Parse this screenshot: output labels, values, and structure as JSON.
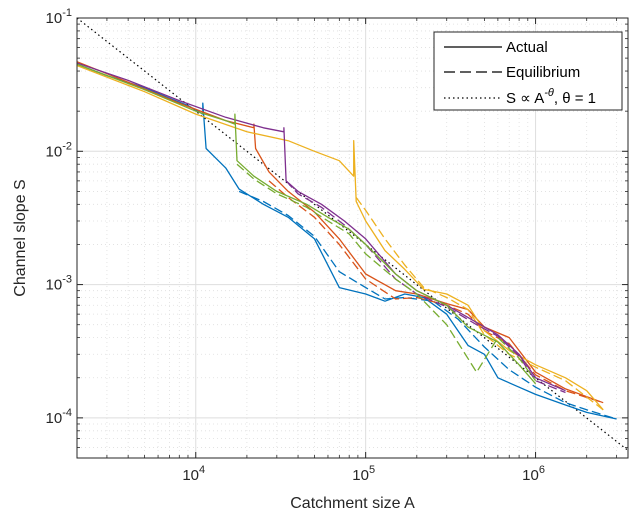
{
  "chart_data": {
    "type": "line",
    "title": "",
    "xlabel": "Catchment size A",
    "ylabel": "Channel slope S",
    "x_scale": "log",
    "y_scale": "log",
    "xlim": [
      2000,
      3500000
    ],
    "ylim": [
      5e-05,
      0.1
    ],
    "x_ticks": [
      {
        "value": 10000,
        "base": "10",
        "exp": "4"
      },
      {
        "value": 100000,
        "base": "10",
        "exp": "5"
      },
      {
        "value": 1000000,
        "base": "10",
        "exp": "6"
      }
    ],
    "y_ticks": [
      {
        "value": 0.1,
        "base": "10",
        "exp": "-1"
      },
      {
        "value": 0.01,
        "base": "10",
        "exp": "-2"
      },
      {
        "value": 0.001,
        "base": "10",
        "exp": "-3"
      },
      {
        "value": 0.0001,
        "base": "10",
        "exp": "-4"
      }
    ],
    "grid": true,
    "legend_position": "top-right",
    "legend": [
      {
        "label": "Actual",
        "style": "solid"
      },
      {
        "label": "Equilibrium",
        "style": "dashed"
      },
      {
        "label_parts": [
          "S ∝ A",
          "-θ",
          ", θ = 1"
        ],
        "style": "dotted"
      }
    ],
    "reference_line": {
      "relation": "S ∝ A^-θ",
      "theta": 1,
      "points": [
        [
          2000,
          0.1
        ],
        [
          3500000,
          5.7e-05
        ]
      ]
    },
    "colors": {
      "blue": "#0072BD",
      "orange": "#D95319",
      "yellow": "#EDB120",
      "purple": "#7E2F8E",
      "green": "#77AC30",
      "grid": "#dedede",
      "text": "#262626"
    },
    "series": [
      {
        "color_key": "blue",
        "kind": "actual",
        "points": [
          [
            2000,
            0.045
          ],
          [
            3000,
            0.037
          ],
          [
            5000,
            0.03
          ],
          [
            7000,
            0.025
          ],
          [
            9000,
            0.022
          ],
          [
            11000,
            0.019
          ],
          [
            11000,
            0.023
          ],
          [
            11500,
            0.0105
          ],
          [
            13000,
            0.009
          ],
          [
            15000,
            0.0075
          ],
          [
            18000,
            0.0052
          ],
          [
            25000,
            0.004
          ],
          [
            35000,
            0.0032
          ],
          [
            50000,
            0.0022
          ],
          [
            70000,
            0.00095
          ],
          [
            100000,
            0.00085
          ],
          [
            130000,
            0.00075
          ],
          [
            170000,
            0.00085
          ],
          [
            220000,
            0.0008
          ],
          [
            300000,
            0.0006
          ],
          [
            400000,
            0.00035
          ],
          [
            500000,
            0.0003
          ],
          [
            600000,
            0.0002
          ],
          [
            800000,
            0.00017
          ],
          [
            1000000,
            0.00015
          ],
          [
            1500000,
            0.000125
          ],
          [
            2000000,
            0.00011
          ],
          [
            3000000,
            9.8e-05
          ]
        ]
      },
      {
        "color_key": "blue",
        "kind": "equilibrium",
        "points": [
          [
            18000,
            0.005
          ],
          [
            25000,
            0.0042
          ],
          [
            35000,
            0.0033
          ],
          [
            50000,
            0.0023
          ],
          [
            70000,
            0.00125
          ],
          [
            100000,
            0.00095
          ],
          [
            130000,
            0.00078
          ],
          [
            170000,
            0.0008
          ],
          [
            250000,
            0.00075
          ],
          [
            350000,
            0.00055
          ],
          [
            500000,
            0.00034
          ],
          [
            700000,
            0.00023
          ],
          [
            1000000,
            0.00017
          ],
          [
            1500000,
            0.00013
          ],
          [
            2000000,
            0.000115
          ],
          [
            3000000,
            9.8e-05
          ]
        ]
      },
      {
        "color_key": "orange",
        "kind": "actual",
        "points": [
          [
            2000,
            0.047
          ],
          [
            4000,
            0.033
          ],
          [
            8000,
            0.023
          ],
          [
            15000,
            0.017
          ],
          [
            22000,
            0.015
          ],
          [
            22000,
            0.016
          ],
          [
            22500,
            0.0105
          ],
          [
            27000,
            0.007
          ],
          [
            35000,
            0.005
          ],
          [
            50000,
            0.0035
          ],
          [
            70000,
            0.0022
          ],
          [
            100000,
            0.0012
          ],
          [
            150000,
            0.0009
          ],
          [
            200000,
            0.00085
          ],
          [
            300000,
            0.00072
          ],
          [
            400000,
            0.00065
          ],
          [
            500000,
            0.00048
          ],
          [
            700000,
            0.0004
          ],
          [
            1000000,
            0.00022
          ],
          [
            1500000,
            0.000165
          ],
          [
            2500000,
            0.00013
          ]
        ]
      },
      {
        "color_key": "orange",
        "kind": "equilibrium",
        "points": [
          [
            27000,
            0.006
          ],
          [
            35000,
            0.0045
          ],
          [
            50000,
            0.0032
          ],
          [
            70000,
            0.002
          ],
          [
            100000,
            0.0011
          ],
          [
            150000,
            0.00078
          ],
          [
            200000,
            0.0008
          ],
          [
            300000,
            0.0007
          ],
          [
            400000,
            0.0006
          ],
          [
            500000,
            0.00045
          ],
          [
            700000,
            0.00036
          ],
          [
            1000000,
            0.00021
          ],
          [
            1500000,
            0.00016
          ],
          [
            2500000,
            0.00013
          ]
        ]
      },
      {
        "color_key": "yellow",
        "kind": "actual",
        "points": [
          [
            2000,
            0.044
          ],
          [
            5000,
            0.028
          ],
          [
            10000,
            0.019
          ],
          [
            20000,
            0.014
          ],
          [
            35000,
            0.012
          ],
          [
            50000,
            0.01
          ],
          [
            70000,
            0.0085
          ],
          [
            85000,
            0.0065
          ],
          [
            85000,
            0.012
          ],
          [
            88000,
            0.0042
          ],
          [
            100000,
            0.003
          ],
          [
            130000,
            0.0018
          ],
          [
            170000,
            0.0013
          ],
          [
            220000,
            0.00092
          ],
          [
            300000,
            0.00085
          ],
          [
            400000,
            0.0007
          ],
          [
            500000,
            0.00045
          ],
          [
            700000,
            0.00032
          ],
          [
            1000000,
            0.00025
          ],
          [
            1500000,
            0.0002
          ],
          [
            2000000,
            0.00016
          ],
          [
            2500000,
            0.000115
          ]
        ]
      },
      {
        "color_key": "yellow",
        "kind": "equilibrium",
        "points": [
          [
            88000,
            0.0045
          ],
          [
            100000,
            0.0036
          ],
          [
            130000,
            0.0022
          ],
          [
            170000,
            0.0014
          ],
          [
            220000,
            0.00095
          ],
          [
            300000,
            0.0008
          ],
          [
            400000,
            0.00065
          ],
          [
            500000,
            0.00042
          ],
          [
            700000,
            0.0003
          ],
          [
            1000000,
            0.00024
          ],
          [
            1500000,
            0.00019
          ],
          [
            2500000,
            0.000115
          ]
        ]
      },
      {
        "color_key": "purple",
        "kind": "actual",
        "points": [
          [
            2000,
            0.046
          ],
          [
            4000,
            0.034
          ],
          [
            8000,
            0.024
          ],
          [
            15000,
            0.018
          ],
          [
            25000,
            0.015
          ],
          [
            33000,
            0.014
          ],
          [
            33000,
            0.015
          ],
          [
            34000,
            0.006
          ],
          [
            40000,
            0.005
          ],
          [
            55000,
            0.004
          ],
          [
            75000,
            0.003
          ],
          [
            100000,
            0.0022
          ],
          [
            150000,
            0.0012
          ],
          [
            200000,
            0.0009
          ],
          [
            300000,
            0.0007
          ],
          [
            450000,
            0.00052
          ],
          [
            600000,
            0.00042
          ],
          [
            800000,
            0.0003
          ],
          [
            1000000,
            0.0002
          ],
          [
            1500000,
            0.00016
          ]
        ]
      },
      {
        "color_key": "purple",
        "kind": "equilibrium",
        "points": [
          [
            34000,
            0.006
          ],
          [
            40000,
            0.0048
          ],
          [
            55000,
            0.0038
          ],
          [
            75000,
            0.0028
          ],
          [
            100000,
            0.002
          ],
          [
            150000,
            0.0011
          ],
          [
            200000,
            0.00085
          ],
          [
            300000,
            0.00068
          ],
          [
            450000,
            0.0005
          ],
          [
            600000,
            0.00041
          ],
          [
            800000,
            0.00029
          ],
          [
            1000000,
            0.00019
          ],
          [
            1500000,
            0.000155
          ]
        ]
      },
      {
        "color_key": "green",
        "kind": "actual",
        "points": [
          [
            2000,
            0.045
          ],
          [
            5000,
            0.029
          ],
          [
            10000,
            0.02
          ],
          [
            15000,
            0.017
          ],
          [
            17000,
            0.016
          ],
          [
            17000,
            0.019
          ],
          [
            17500,
            0.0085
          ],
          [
            22000,
            0.0065
          ],
          [
            30000,
            0.005
          ],
          [
            45000,
            0.004
          ],
          [
            60000,
            0.0032
          ],
          [
            80000,
            0.0026
          ],
          [
            100000,
            0.002
          ],
          [
            150000,
            0.0012
          ],
          [
            200000,
            0.0009
          ],
          [
            300000,
            0.0007
          ],
          [
            400000,
            0.00048
          ],
          [
            600000,
            0.00037
          ],
          [
            800000,
            0.00025
          ],
          [
            1000000,
            0.00018
          ]
        ]
      },
      {
        "color_key": "green",
        "kind": "equilibrium",
        "points": [
          [
            17500,
            0.008
          ],
          [
            22000,
            0.0062
          ],
          [
            30000,
            0.0048
          ],
          [
            45000,
            0.0038
          ],
          [
            60000,
            0.003
          ],
          [
            80000,
            0.0024
          ],
          [
            100000,
            0.0017
          ],
          [
            150000,
            0.0011
          ],
          [
            200000,
            0.00085
          ],
          [
            300000,
            0.0005
          ],
          [
            450000,
            0.00022
          ],
          [
            600000,
            0.0004
          ],
          [
            800000,
            0.00028
          ],
          [
            1000000,
            0.00019
          ]
        ]
      }
    ]
  }
}
